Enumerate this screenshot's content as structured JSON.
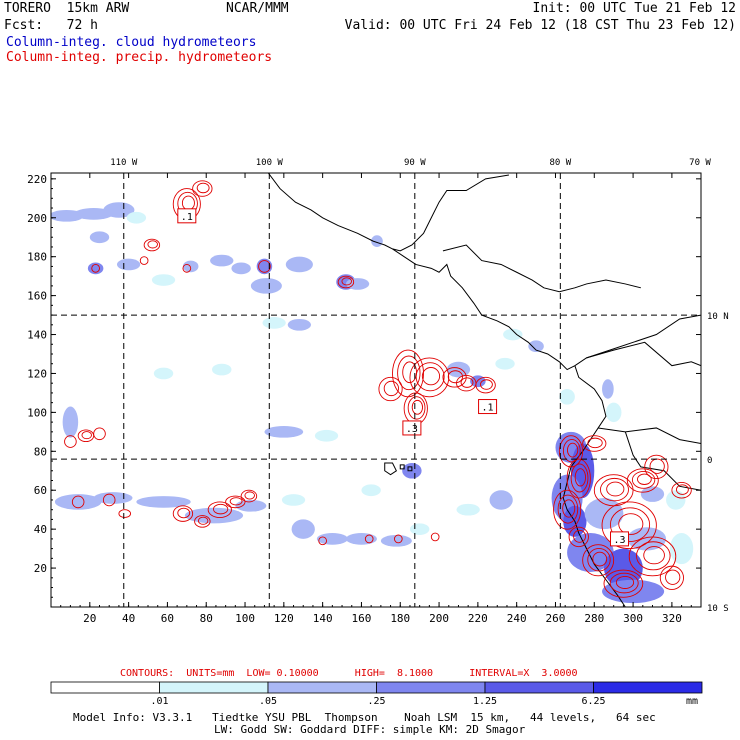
{
  "header": {
    "model": "TORERO  15km ARW",
    "center": "NCAR/MMM",
    "init": "Init: 00 UTC Tue 21 Feb 12",
    "fcst": "Fcst:   72 h",
    "valid": "Valid: 00 UTC Fri 24 Feb 12 (18 CST Thu 23 Feb 12)",
    "field1": "Column-integ. cloud hydrometeors",
    "field2": "Column-integ. precip. hydrometeors"
  },
  "colors": {
    "cloud": "#0000c8",
    "precip": "#e00000",
    "bin1": "#d4f5fb",
    "bin2": "#aab8f5",
    "bin3": "#7f86ef",
    "bin4": "#5a5ae8",
    "bin5": "#2b2be6"
  },
  "contours_text": "CONTOURS:  UNITS=mm  LOW= 0.10000      HIGH=  8.1000      INTERVAL=X  3.0000",
  "colorbar": {
    "labels": [
      ".01",
      ".05",
      ".25",
      "1.25",
      "6.25"
    ],
    "unit": "mm"
  },
  "footer": {
    "line1": "Model Info: V3.3.1   Tiedtke YSU PBL  Thompson    Noah LSM  15 km,   44 levels,   64 sec",
    "line2": "LW: Godd SW: Goddard DIFF: simple KM: 2D Smagor"
  },
  "precip_labels": [
    ".1",
    ".1",
    ".3",
    ".3"
  ],
  "chart_data": {
    "type": "heatmap",
    "title": "Column-integ. cloud hydrometeors / Column-integ. precip. hydrometeors",
    "xaxis": {
      "range": [
        0,
        335
      ],
      "ticks": [
        20,
        40,
        60,
        80,
        100,
        120,
        140,
        160,
        180,
        200,
        220,
        240,
        260,
        280,
        300,
        320
      ],
      "tick_labels": [
        "20",
        "40",
        "60",
        "80",
        "100",
        "120",
        "140",
        "160",
        "180",
        "200",
        "220",
        "240",
        "260",
        "280",
        "300",
        "320"
      ]
    },
    "yaxis": {
      "range": [
        0,
        223
      ],
      "ticks": [
        20,
        40,
        60,
        80,
        100,
        120,
        140,
        160,
        180,
        200,
        220
      ],
      "tick_labels": [
        "20",
        "40",
        "60",
        "80",
        "100",
        "120",
        "140",
        "160",
        "180",
        "200",
        "220"
      ]
    },
    "longitude_labels": [
      {
        "x": 37.5,
        "label": "110 W"
      },
      {
        "x": 112.5,
        "label": "100 W"
      },
      {
        "x": 187.5,
        "label": "90 W"
      },
      {
        "x": 262.5,
        "label": "80 W"
      },
      {
        "x": 337.5,
        "label": "70 W"
      }
    ],
    "latitude_labels": [
      {
        "y": 150,
        "label": "10 N"
      },
      {
        "y": 76,
        "label": "0"
      },
      {
        "y": 0,
        "label": "10 S"
      }
    ],
    "grid_x": [
      37.5,
      112.5,
      187.5,
      262.5
    ],
    "grid_y": [
      76,
      150
    ],
    "legend_bins": [
      {
        "range": "0.01-0.05",
        "color": "#d4f5fb"
      },
      {
        "range": "0.05-0.25",
        "color": "#aab8f5"
      },
      {
        "range": "0.25-1.25",
        "color": "#7f86ef"
      },
      {
        "range": "1.25-6.25",
        "color": "#5a5ae8"
      },
      {
        "range": ">6.25",
        "color": "#2b2be6"
      }
    ],
    "cloud_cells": [
      {
        "x": 8,
        "y": 201,
        "rx": 9,
        "ry": 3,
        "level": 2
      },
      {
        "x": 22,
        "y": 202,
        "rx": 10,
        "ry": 3,
        "level": 2
      },
      {
        "x": 35,
        "y": 204,
        "rx": 8,
        "ry": 4,
        "level": 2
      },
      {
        "x": 44,
        "y": 200,
        "rx": 5,
        "ry": 3,
        "level": 1
      },
      {
        "x": 25,
        "y": 190,
        "rx": 5,
        "ry": 3,
        "level": 2
      },
      {
        "x": 23,
        "y": 174,
        "rx": 4,
        "ry": 3,
        "level": 3
      },
      {
        "x": 40,
        "y": 176,
        "rx": 6,
        "ry": 3,
        "level": 2
      },
      {
        "x": 58,
        "y": 168,
        "rx": 6,
        "ry": 3,
        "level": 1
      },
      {
        "x": 72,
        "y": 175,
        "rx": 4,
        "ry": 3,
        "level": 2
      },
      {
        "x": 88,
        "y": 178,
        "rx": 6,
        "ry": 3,
        "level": 2
      },
      {
        "x": 98,
        "y": 174,
        "rx": 5,
        "ry": 3,
        "level": 2
      },
      {
        "x": 110,
        "y": 175,
        "rx": 4,
        "ry": 4,
        "level": 3
      },
      {
        "x": 111,
        "y": 165,
        "rx": 8,
        "ry": 4,
        "level": 2
      },
      {
        "x": 128,
        "y": 176,
        "rx": 7,
        "ry": 4,
        "level": 2
      },
      {
        "x": 115,
        "y": 146,
        "rx": 6,
        "ry": 3,
        "level": 1
      },
      {
        "x": 128,
        "y": 145,
        "rx": 6,
        "ry": 3,
        "level": 2
      },
      {
        "x": 152,
        "y": 167,
        "rx": 5,
        "ry": 4,
        "level": 3
      },
      {
        "x": 158,
        "y": 166,
        "rx": 6,
        "ry": 3,
        "level": 2
      },
      {
        "x": 10,
        "y": 95,
        "rx": 4,
        "ry": 8,
        "level": 2
      },
      {
        "x": 58,
        "y": 120,
        "rx": 5,
        "ry": 3,
        "level": 1
      },
      {
        "x": 88,
        "y": 122,
        "rx": 5,
        "ry": 3,
        "level": 1
      },
      {
        "x": 120,
        "y": 90,
        "rx": 10,
        "ry": 3,
        "level": 2
      },
      {
        "x": 142,
        "y": 88,
        "rx": 6,
        "ry": 3,
        "level": 1
      },
      {
        "x": 14,
        "y": 54,
        "rx": 12,
        "ry": 4,
        "level": 2
      },
      {
        "x": 32,
        "y": 56,
        "rx": 10,
        "ry": 3,
        "level": 2
      },
      {
        "x": 58,
        "y": 54,
        "rx": 14,
        "ry": 3,
        "level": 2
      },
      {
        "x": 84,
        "y": 47,
        "rx": 15,
        "ry": 4,
        "level": 2
      },
      {
        "x": 103,
        "y": 52,
        "rx": 8,
        "ry": 3,
        "level": 2
      },
      {
        "x": 125,
        "y": 55,
        "rx": 6,
        "ry": 3,
        "level": 1
      },
      {
        "x": 130,
        "y": 40,
        "rx": 6,
        "ry": 5,
        "level": 2
      },
      {
        "x": 145,
        "y": 35,
        "rx": 8,
        "ry": 3,
        "level": 2
      },
      {
        "x": 160,
        "y": 35,
        "rx": 8,
        "ry": 3,
        "level": 2
      },
      {
        "x": 178,
        "y": 34,
        "rx": 8,
        "ry": 3,
        "level": 2
      },
      {
        "x": 190,
        "y": 40,
        "rx": 5,
        "ry": 3,
        "level": 1
      },
      {
        "x": 165,
        "y": 60,
        "rx": 5,
        "ry": 3,
        "level": 1
      },
      {
        "x": 232,
        "y": 55,
        "rx": 6,
        "ry": 5,
        "level": 2
      },
      {
        "x": 215,
        "y": 50,
        "rx": 6,
        "ry": 3,
        "level": 1
      },
      {
        "x": 186,
        "y": 70,
        "rx": 5,
        "ry": 4,
        "level": 3
      },
      {
        "x": 168,
        "y": 188,
        "rx": 3,
        "ry": 3,
        "level": 2
      },
      {
        "x": 210,
        "y": 122,
        "rx": 6,
        "ry": 4,
        "level": 2
      },
      {
        "x": 220,
        "y": 116,
        "rx": 4,
        "ry": 3,
        "level": 3
      },
      {
        "x": 234,
        "y": 125,
        "rx": 5,
        "ry": 3,
        "level": 1
      },
      {
        "x": 238,
        "y": 140,
        "rx": 5,
        "ry": 3,
        "level": 1
      },
      {
        "x": 250,
        "y": 134,
        "rx": 4,
        "ry": 3,
        "level": 2
      },
      {
        "x": 266,
        "y": 108,
        "rx": 4,
        "ry": 4,
        "level": 1
      },
      {
        "x": 268,
        "y": 82,
        "rx": 8,
        "ry": 8,
        "level": 3
      },
      {
        "x": 274,
        "y": 70,
        "rx": 6,
        "ry": 14,
        "level": 4
      },
      {
        "x": 266,
        "y": 56,
        "rx": 8,
        "ry": 12,
        "level": 3
      },
      {
        "x": 270,
        "y": 44,
        "rx": 6,
        "ry": 8,
        "level": 4
      },
      {
        "x": 285,
        "y": 48,
        "rx": 10,
        "ry": 8,
        "level": 2
      },
      {
        "x": 278,
        "y": 28,
        "rx": 12,
        "ry": 10,
        "level": 3
      },
      {
        "x": 295,
        "y": 20,
        "rx": 10,
        "ry": 10,
        "level": 4
      },
      {
        "x": 300,
        "y": 8,
        "rx": 16,
        "ry": 6,
        "level": 3
      },
      {
        "x": 307,
        "y": 35,
        "rx": 10,
        "ry": 6,
        "level": 2
      },
      {
        "x": 310,
        "y": 58,
        "rx": 6,
        "ry": 4,
        "level": 2
      },
      {
        "x": 322,
        "y": 55,
        "rx": 5,
        "ry": 5,
        "level": 1
      },
      {
        "x": 325,
        "y": 30,
        "rx": 6,
        "ry": 8,
        "level": 1
      },
      {
        "x": 287,
        "y": 112,
        "rx": 3,
        "ry": 5,
        "level": 2
      },
      {
        "x": 290,
        "y": 100,
        "rx": 4,
        "ry": 5,
        "level": 1
      }
    ],
    "precip_cells": [
      {
        "x": 70,
        "y": 207,
        "rx": 7,
        "ry": 8
      },
      {
        "x": 78,
        "y": 215,
        "rx": 5,
        "ry": 4
      },
      {
        "x": 52,
        "y": 186,
        "rx": 4,
        "ry": 3
      },
      {
        "x": 48,
        "y": 178,
        "rx": 2,
        "ry": 2
      },
      {
        "x": 23,
        "y": 174,
        "rx": 2,
        "ry": 2
      },
      {
        "x": 70,
        "y": 174,
        "rx": 2,
        "ry": 2
      },
      {
        "x": 110,
        "y": 175,
        "rx": 3,
        "ry": 3
      },
      {
        "x": 152,
        "y": 167,
        "rx": 4,
        "ry": 3
      },
      {
        "x": 195,
        "y": 118,
        "rx": 10,
        "ry": 10
      },
      {
        "x": 184,
        "y": 120,
        "rx": 8,
        "ry": 12
      },
      {
        "x": 175,
        "y": 112,
        "rx": 6,
        "ry": 6
      },
      {
        "x": 188,
        "y": 102,
        "rx": 6,
        "ry": 8
      },
      {
        "x": 208,
        "y": 118,
        "rx": 6,
        "ry": 5
      },
      {
        "x": 214,
        "y": 115,
        "rx": 5,
        "ry": 4
      },
      {
        "x": 224,
        "y": 114,
        "rx": 5,
        "ry": 4
      },
      {
        "x": 18,
        "y": 88,
        "rx": 4,
        "ry": 3
      },
      {
        "x": 25,
        "y": 89,
        "rx": 3,
        "ry": 3
      },
      {
        "x": 10,
        "y": 85,
        "rx": 3,
        "ry": 3
      },
      {
        "x": 14,
        "y": 54,
        "rx": 3,
        "ry": 3
      },
      {
        "x": 30,
        "y": 55,
        "rx": 3,
        "ry": 3
      },
      {
        "x": 38,
        "y": 48,
        "rx": 3,
        "ry": 2
      },
      {
        "x": 68,
        "y": 48,
        "rx": 5,
        "ry": 4
      },
      {
        "x": 78,
        "y": 44,
        "rx": 4,
        "ry": 3
      },
      {
        "x": 87,
        "y": 50,
        "rx": 6,
        "ry": 4
      },
      {
        "x": 95,
        "y": 54,
        "rx": 5,
        "ry": 3
      },
      {
        "x": 102,
        "y": 57,
        "rx": 4,
        "ry": 3
      },
      {
        "x": 140,
        "y": 34,
        "rx": 2,
        "ry": 2
      },
      {
        "x": 164,
        "y": 35,
        "rx": 2,
        "ry": 2
      },
      {
        "x": 179,
        "y": 35,
        "rx": 2,
        "ry": 2
      },
      {
        "x": 198,
        "y": 36,
        "rx": 2,
        "ry": 2
      },
      {
        "x": 268,
        "y": 80,
        "rx": 6,
        "ry": 8
      },
      {
        "x": 272,
        "y": 66,
        "rx": 6,
        "ry": 10
      },
      {
        "x": 266,
        "y": 50,
        "rx": 7,
        "ry": 10
      },
      {
        "x": 272,
        "y": 36,
        "rx": 5,
        "ry": 5
      },
      {
        "x": 282,
        "y": 24,
        "rx": 8,
        "ry": 8
      },
      {
        "x": 295,
        "y": 12,
        "rx": 10,
        "ry": 7
      },
      {
        "x": 298,
        "y": 42,
        "rx": 14,
        "ry": 12
      },
      {
        "x": 310,
        "y": 26,
        "rx": 12,
        "ry": 10
      },
      {
        "x": 290,
        "y": 60,
        "rx": 10,
        "ry": 8
      },
      {
        "x": 305,
        "y": 65,
        "rx": 8,
        "ry": 6
      },
      {
        "x": 312,
        "y": 72,
        "rx": 6,
        "ry": 6
      },
      {
        "x": 280,
        "y": 84,
        "rx": 6,
        "ry": 4
      },
      {
        "x": 320,
        "y": 15,
        "rx": 6,
        "ry": 6
      },
      {
        "x": 325,
        "y": 60,
        "rx": 5,
        "ry": 4
      }
    ],
    "precip_label_positions": [
      {
        "x": 70,
        "y": 201
      },
      {
        "x": 225,
        "y": 103
      },
      {
        "x": 186,
        "y": 92
      },
      {
        "x": 293,
        "y": 35
      }
    ],
    "coastline": [
      [
        [
          112,
          223
        ],
        [
          118,
          215
        ],
        [
          126,
          208
        ],
        [
          134,
          204
        ],
        [
          140,
          200
        ],
        [
          148,
          196
        ],
        [
          158,
          192
        ],
        [
          166,
          188
        ],
        [
          172,
          186
        ],
        [
          176,
          184
        ],
        [
          180,
          183
        ],
        [
          186,
          186
        ],
        [
          192,
          192
        ],
        [
          196,
          200
        ],
        [
          200,
          208
        ],
        [
          204,
          214
        ],
        [
          214,
          214
        ],
        [
          224,
          220
        ],
        [
          236,
          222
        ]
      ],
      [
        [
          176,
          184
        ],
        [
          182,
          180
        ],
        [
          188,
          176
        ],
        [
          196,
          174
        ],
        [
          200,
          172
        ],
        [
          204,
          176
        ],
        [
          206,
          170
        ],
        [
          212,
          164
        ],
        [
          218,
          156
        ],
        [
          222,
          150
        ],
        [
          230,
          147
        ],
        [
          236,
          144
        ],
        [
          240,
          140
        ],
        [
          246,
          136
        ],
        [
          250,
          132
        ],
        [
          256,
          130
        ],
        [
          262,
          126
        ],
        [
          266,
          122
        ],
        [
          270,
          124
        ],
        [
          276,
          128
        ],
        [
          282,
          130
        ],
        [
          288,
          132
        ],
        [
          300,
          136
        ],
        [
          312,
          140
        ],
        [
          324,
          148
        ],
        [
          335,
          150
        ]
      ],
      [
        [
          202,
          183
        ],
        [
          214,
          186
        ],
        [
          222,
          178
        ],
        [
          232,
          176
        ],
        [
          240,
          172
        ],
        [
          248,
          168
        ],
        [
          254,
          164
        ],
        [
          262,
          162
        ],
        [
          270,
          164
        ],
        [
          276,
          166
        ],
        [
          286,
          168
        ],
        [
          296,
          166
        ],
        [
          304,
          164
        ]
      ],
      [
        [
          270,
          124
        ],
        [
          272,
          118
        ],
        [
          280,
          112
        ],
        [
          284,
          106
        ],
        [
          286,
          98
        ],
        [
          282,
          92
        ],
        [
          278,
          86
        ],
        [
          274,
          80
        ],
        [
          268,
          72
        ],
        [
          266,
          64
        ],
        [
          264,
          56
        ],
        [
          266,
          50
        ],
        [
          270,
          44
        ],
        [
          272,
          38
        ],
        [
          276,
          30
        ],
        [
          280,
          22
        ],
        [
          286,
          14
        ],
        [
          292,
          6
        ],
        [
          296,
          0
        ]
      ],
      [
        [
          276,
          128
        ],
        [
          290,
          132
        ],
        [
          306,
          136
        ],
        [
          320,
          124
        ],
        [
          330,
          126
        ],
        [
          335,
          124
        ]
      ],
      [
        [
          282,
          92
        ],
        [
          296,
          90
        ],
        [
          312,
          92
        ],
        [
          324,
          86
        ],
        [
          335,
          84
        ]
      ],
      [
        [
          296,
          90
        ],
        [
          300,
          78
        ],
        [
          304,
          72
        ],
        [
          316,
          70
        ],
        [
          324,
          62
        ],
        [
          335,
          60
        ]
      ]
    ],
    "islands": [
      [
        [
          172,
          74
        ],
        [
          176,
          74
        ],
        [
          178,
          70
        ],
        [
          175,
          68
        ],
        [
          172,
          70
        ]
      ],
      [
        [
          180,
          73
        ],
        [
          182,
          73
        ],
        [
          182,
          71
        ],
        [
          180,
          71
        ]
      ],
      [
        [
          184,
          72
        ],
        [
          186,
          72
        ],
        [
          186,
          70
        ],
        [
          184,
          70
        ]
      ]
    ]
  }
}
